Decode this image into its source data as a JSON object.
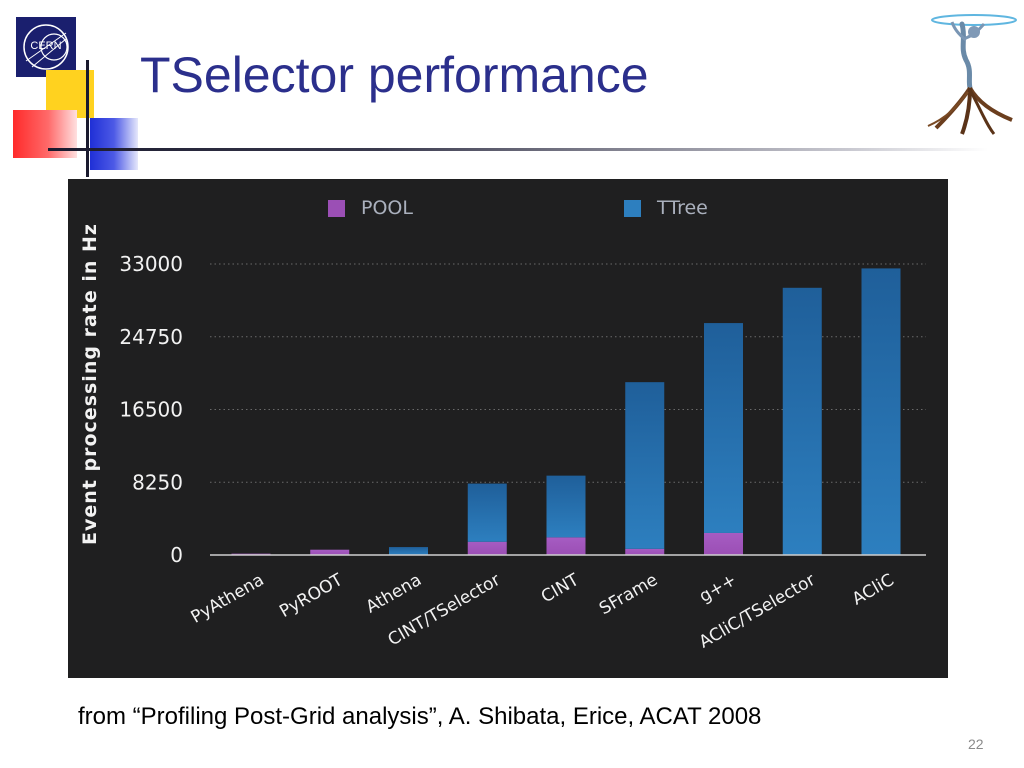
{
  "slide": {
    "title": "TSelector performance",
    "logo_text": "CERN",
    "footer": "from “Profiling Post-Grid analysis”, A. Shibata, Erice, ACAT 2008",
    "page_number": "22"
  },
  "colors": {
    "title": "#2b2f8c",
    "pool": "#9b4fb5",
    "ttree": "#2d7fbf",
    "chart_bg": "#1f1f20"
  },
  "chart_data": {
    "type": "bar",
    "stacked": true,
    "title": "",
    "xlabel": "",
    "ylabel": "Event processing rate in Hz",
    "ylim": [
      0,
      33000
    ],
    "yticks": [
      0,
      8250,
      16500,
      24750,
      33000
    ],
    "ytick_labels": [
      "0",
      "8250",
      "16500",
      "24750",
      "33000"
    ],
    "grid": true,
    "legend_position": "top",
    "categories": [
      "PyAthena",
      "PyROOT",
      "Athena",
      "CINT/TSelector",
      "CINT",
      "SFrame",
      "g++",
      "ACliC/TSelector",
      "ACliC"
    ],
    "series": [
      {
        "name": "POOL",
        "color": "#9b4fb5",
        "values": [
          150,
          600,
          0,
          1500,
          2000,
          700,
          2500,
          0,
          0
        ]
      },
      {
        "name": "TTree",
        "color": "#2d7fbf",
        "values": [
          0,
          0,
          900,
          6600,
          7000,
          18900,
          23800,
          30300,
          32500
        ]
      }
    ]
  }
}
